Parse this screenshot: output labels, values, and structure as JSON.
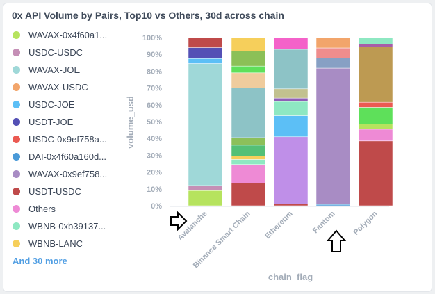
{
  "card": {
    "title": "0x API Volume by Pairs, Top10 vs Others, 30d across chain"
  },
  "legend": {
    "items": [
      {
        "label": "WAVAX-0x4f60a1...",
        "color": "#b6e35e"
      },
      {
        "label": "USDC-USDC",
        "color": "#c58fb6"
      },
      {
        "label": "WAVAX-JOE",
        "color": "#9fd8d8"
      },
      {
        "label": "WAVAX-USDC",
        "color": "#f2a56b"
      },
      {
        "label": "USDC-JOE",
        "color": "#5cbff6"
      },
      {
        "label": "USDT-JOE",
        "color": "#5450b5"
      },
      {
        "label": "USDC-0x9ef758a...",
        "color": "#eb5a52"
      },
      {
        "label": "DAI-0x4f60a160d...",
        "color": "#4a9ad8"
      },
      {
        "label": "WAVAX-0x9ef758...",
        "color": "#a88cc4"
      },
      {
        "label": "USDT-USDC",
        "color": "#bf4a4a"
      },
      {
        "label": "Others",
        "color": "#ee8ad5"
      },
      {
        "label": "WBNB-0xb39137...",
        "color": "#8ee8c2"
      },
      {
        "label": "WBNB-LANC",
        "color": "#f6cf5b"
      }
    ],
    "more_label": "And 30 more"
  },
  "chart_data": {
    "type": "bar",
    "stacked": true,
    "normalized": true,
    "categories": [
      "Avalanche",
      "Binance Smart Chain",
      "Ethereum",
      "Fantom",
      "Polygon"
    ],
    "xlabel": "chain_flag",
    "ylabel": "volume_usd",
    "ylim": [
      0,
      100
    ],
    "yticks": [
      "0%",
      "10%",
      "20%",
      "30%",
      "40%",
      "50%",
      "60%",
      "70%",
      "80%",
      "90%",
      "100%"
    ],
    "grid": false,
    "legend": "left",
    "stacks": [
      [
        {
          "color": "#b6e35e",
          "value": 9
        },
        {
          "color": "#c58fb6",
          "value": 3
        },
        {
          "color": "#9fd8d8",
          "value": 72.5
        },
        {
          "color": "#5cbff6",
          "value": 3
        },
        {
          "color": "#5450b5",
          "value": 6.5
        },
        {
          "color": "#bf4a4a",
          "value": 6
        }
      ],
      [
        {
          "color": "#bf4a4a",
          "value": 13.5
        },
        {
          "color": "#ee8ad5",
          "value": 11
        },
        {
          "color": "#8ee8c2",
          "value": 3
        },
        {
          "color": "#f6cf5b",
          "value": 2
        },
        {
          "color": "#54c076",
          "value": 6.5
        },
        {
          "color": "#8cc05a",
          "value": 4.5
        },
        {
          "color": "#8dc3c6",
          "value": 29.5
        },
        {
          "color": "#efcc9d",
          "value": 9
        },
        {
          "color": "#5ee05a",
          "value": 4
        },
        {
          "color": "#8bc057",
          "value": 9
        },
        {
          "color": "#f6cf5b",
          "value": 8
        }
      ],
      [
        {
          "color": "#bf4a4a",
          "value": 1
        },
        {
          "color": "#bf8fe8",
          "value": 40
        },
        {
          "color": "#5cbff6",
          "value": 12.5
        },
        {
          "color": "#8ee8c2",
          "value": 8.5
        },
        {
          "color": "#8f5fb6",
          "value": 2
        },
        {
          "color": "#c2c18f",
          "value": 5.5
        },
        {
          "color": "#8dc3c6",
          "value": 23.5
        },
        {
          "color": "#f462c9",
          "value": 7
        }
      ],
      [
        {
          "color": "#4a9ad8",
          "value": 0.8
        },
        {
          "color": "#a88cc4",
          "value": 81
        },
        {
          "color": "#87a0c4",
          "value": 6
        },
        {
          "color": "#ef8d8d",
          "value": 6
        },
        {
          "color": "#f2a56b",
          "value": 6.2
        }
      ],
      [
        {
          "color": "#bf4a4a",
          "value": 38.5
        },
        {
          "color": "#ee8ad5",
          "value": 7
        },
        {
          "color": "#b6e35e",
          "value": 3
        },
        {
          "color": "#5ee05a",
          "value": 10
        },
        {
          "color": "#eb5a52",
          "value": 3
        },
        {
          "color": "#bd9a52",
          "value": 33
        },
        {
          "color": "#a85ca8",
          "value": 1.5
        },
        {
          "color": "#8ee8c2",
          "value": 4
        }
      ]
    ]
  },
  "annotations": {
    "arrow_right_icon": "right-arrow-icon",
    "arrow_up_icon": "up-arrow-icon"
  }
}
